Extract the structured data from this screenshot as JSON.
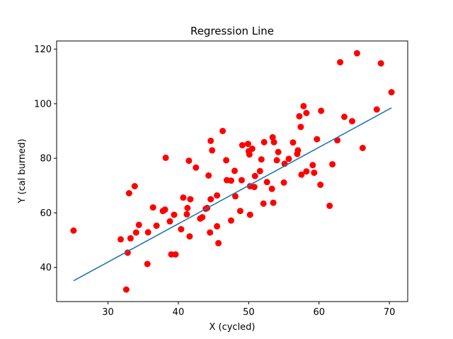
{
  "chart_data": {
    "type": "scatter",
    "title": "Regression Line",
    "xlabel": "X (cycled)",
    "ylabel": "Y (cal burned)",
    "xlim": [
      22.7,
      72.6
    ],
    "ylim": [
      27.5,
      123
    ],
    "xticks": [
      30,
      40,
      50,
      60,
      70
    ],
    "yticks": [
      40,
      60,
      80,
      100,
      120
    ],
    "grid": false,
    "scatter_color": "#ff0000",
    "line_color": "#1f77b4",
    "regression_line": {
      "x": [
        25.1,
        70.3
      ],
      "y": [
        35.1,
        98.5
      ]
    },
    "points": [
      [
        25.1,
        53.5
      ],
      [
        31.8,
        50.3
      ],
      [
        32.6,
        31.9
      ],
      [
        32.8,
        45.4
      ],
      [
        33.0,
        67.2
      ],
      [
        33.2,
        50.7
      ],
      [
        33.8,
        69.8
      ],
      [
        34.0,
        52.8
      ],
      [
        34.4,
        55.6
      ],
      [
        35.6,
        41.3
      ],
      [
        35.7,
        52.9
      ],
      [
        36.4,
        62.0
      ],
      [
        36.9,
        55.3
      ],
      [
        37.8,
        60.7
      ],
      [
        38.1,
        61.2
      ],
      [
        38.2,
        80.2
      ],
      [
        38.8,
        56.9
      ],
      [
        39.0,
        44.8
      ],
      [
        39.4,
        59.3
      ],
      [
        39.6,
        44.8
      ],
      [
        40.4,
        54.0
      ],
      [
        40.7,
        65.6
      ],
      [
        41.2,
        59.5
      ],
      [
        41.3,
        61.8
      ],
      [
        41.5,
        79.1
      ],
      [
        41.6,
        51.4
      ],
      [
        41.7,
        65.0
      ],
      [
        42.5,
        76.6
      ],
      [
        43.1,
        57.9
      ],
      [
        43.4,
        58.4
      ],
      [
        43.9,
        61.5
      ],
      [
        44.1,
        61.8
      ],
      [
        44.3,
        73.7
      ],
      [
        44.5,
        52.8
      ],
      [
        44.6,
        65.0
      ],
      [
        44.6,
        86.4
      ],
      [
        44.8,
        82.9
      ],
      [
        45.5,
        66.4
      ],
      [
        45.5,
        55.1
      ],
      [
        45.7,
        48.9
      ],
      [
        46.3,
        90.0
      ],
      [
        46.8,
        79.3
      ],
      [
        46.9,
        72.0
      ],
      [
        47.5,
        57.2
      ],
      [
        47.5,
        71.8
      ],
      [
        48.0,
        75.4
      ],
      [
        48.1,
        66.1
      ],
      [
        48.8,
        60.7
      ],
      [
        49.0,
        72.0
      ],
      [
        49.1,
        84.8
      ],
      [
        49.9,
        85.3
      ],
      [
        50.0,
        82.6
      ],
      [
        50.1,
        81.4
      ],
      [
        50.2,
        59.3
      ],
      [
        50.2,
        69.8
      ],
      [
        50.5,
        83.5
      ],
      [
        50.8,
        69.5
      ],
      [
        50.9,
        73.5
      ],
      [
        51.6,
        75.3
      ],
      [
        51.8,
        79.6
      ],
      [
        52.1,
        63.4
      ],
      [
        52.2,
        85.9
      ],
      [
        52.6,
        71.3
      ],
      [
        53.3,
        68.8
      ],
      [
        53.4,
        87.7
      ],
      [
        53.5,
        63.7
      ],
      [
        53.6,
        85.9
      ],
      [
        54.0,
        79.3
      ],
      [
        54.2,
        82.3
      ],
      [
        55.0,
        71.1
      ],
      [
        55.1,
        78.0
      ],
      [
        55.7,
        79.8
      ],
      [
        56.3,
        85.8
      ],
      [
        56.9,
        81.6
      ],
      [
        57.0,
        82.9
      ],
      [
        57.2,
        95.4
      ],
      [
        57.4,
        91.5
      ],
      [
        57.5,
        74.0
      ],
      [
        57.8,
        99.1
      ],
      [
        58.2,
        75.2
      ],
      [
        58.2,
        96.6
      ],
      [
        59.1,
        77.5
      ],
      [
        59.3,
        74.7
      ],
      [
        59.7,
        87.0
      ],
      [
        60.2,
        70.3
      ],
      [
        60.3,
        97.4
      ],
      [
        61.5,
        62.6
      ],
      [
        61.9,
        77.8
      ],
      [
        62.6,
        86.6
      ],
      [
        63.0,
        115.2
      ],
      [
        63.6,
        95.2
      ],
      [
        64.7,
        93.6
      ],
      [
        65.4,
        118.5
      ],
      [
        66.2,
        83.8
      ],
      [
        68.2,
        97.9
      ],
      [
        68.8,
        114.8
      ],
      [
        70.3,
        104.2
      ]
    ]
  }
}
